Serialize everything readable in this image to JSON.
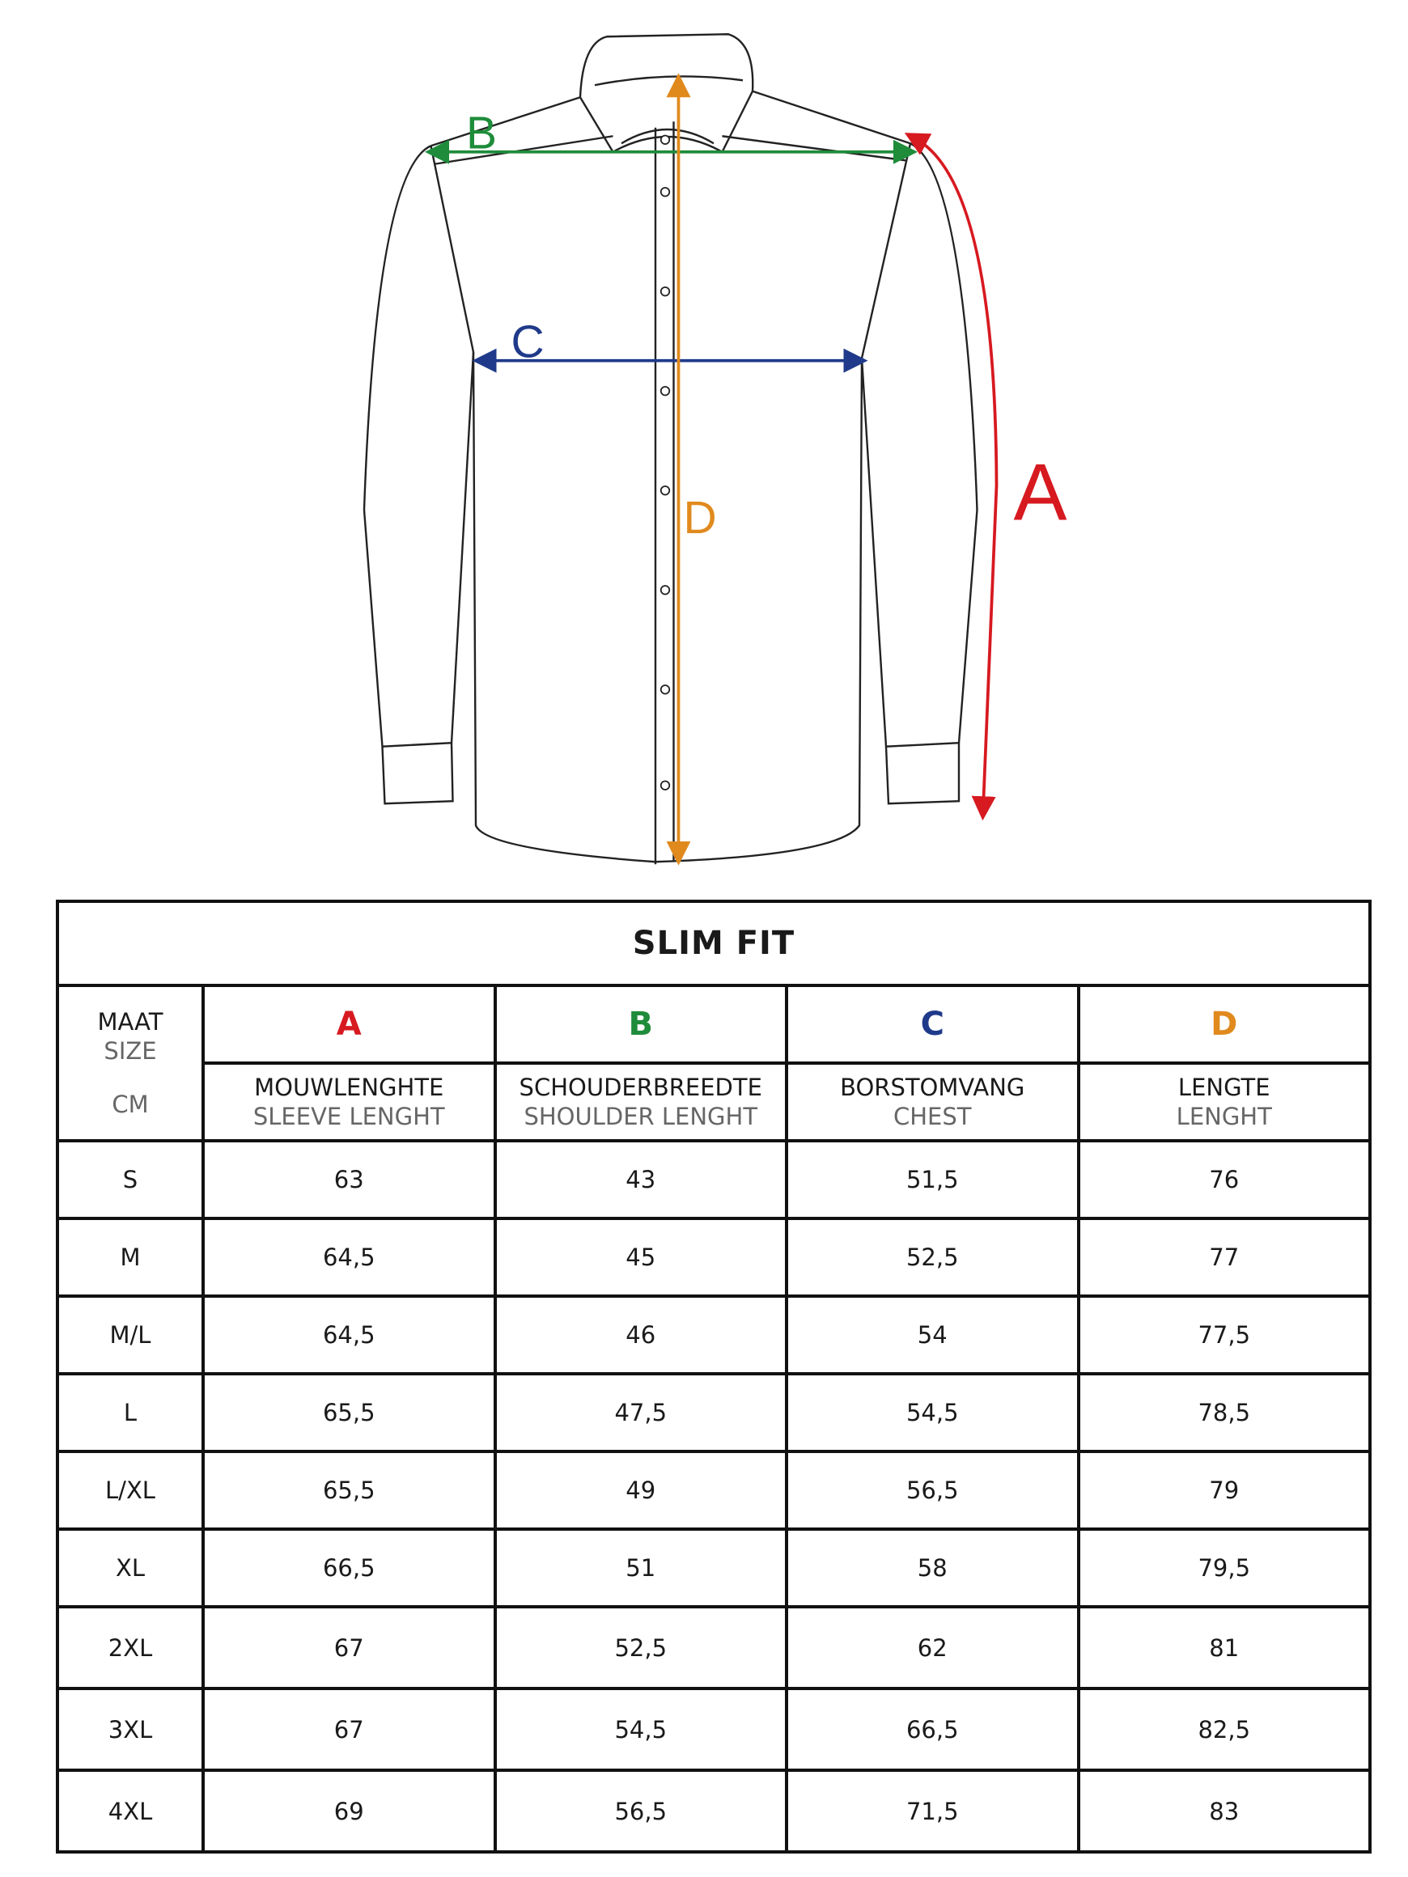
{
  "colors": {
    "A": "#d71920",
    "B": "#1e8c3a",
    "C": "#1f3a8a",
    "D": "#e08a1e"
  },
  "diagram": {
    "labels": {
      "A": "A",
      "B": "B",
      "C": "C",
      "D": "D"
    }
  },
  "table": {
    "title": "SLIM FIT",
    "size_header": {
      "line1": "MAAT",
      "line2": "SIZE",
      "unit": "CM"
    },
    "columns": [
      {
        "letter": "A",
        "nl": "MOUWLENGHTE",
        "en": "SLEEVE LENGHT"
      },
      {
        "letter": "B",
        "nl": "SCHOUDERBREEDTE",
        "en": "SHOULDER LENGHT"
      },
      {
        "letter": "C",
        "nl": "BORSTOMVANG",
        "en": "CHEST"
      },
      {
        "letter": "D",
        "nl": "LENGTE",
        "en": "LENGHT"
      }
    ],
    "rows": [
      {
        "size": "S",
        "values": [
          "63",
          "43",
          "51,5",
          "76"
        ]
      },
      {
        "size": "M",
        "values": [
          "64,5",
          "45",
          "52,5",
          "77"
        ]
      },
      {
        "size": "M/L",
        "values": [
          "64,5",
          "46",
          "54",
          "77,5"
        ]
      },
      {
        "size": "L",
        "values": [
          "65,5",
          "47,5",
          "54,5",
          "78,5"
        ]
      },
      {
        "size": "L/XL",
        "values": [
          "65,5",
          "49",
          "56,5",
          "79"
        ]
      },
      {
        "size": "XL",
        "values": [
          "66,5",
          "51",
          "58",
          "79,5"
        ]
      },
      {
        "size": "2XL",
        "values": [
          "67",
          "52,5",
          "62",
          "81"
        ]
      },
      {
        "size": "3XL",
        "values": [
          "67",
          "54,5",
          "66,5",
          "82,5"
        ]
      },
      {
        "size": "4XL",
        "values": [
          "69",
          "56,5",
          "71,5",
          "83"
        ]
      }
    ]
  }
}
